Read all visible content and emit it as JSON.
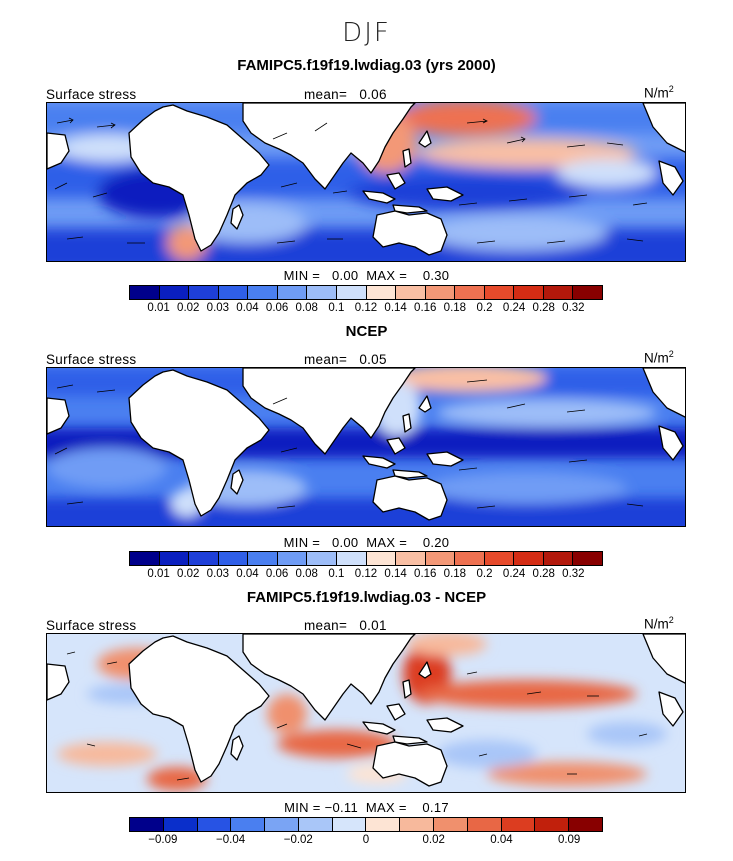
{
  "season": "DJF",
  "colors": {
    "abs": [
      "#00008b",
      "#0a1fbf",
      "#1e3fd8",
      "#2f5fe8",
      "#4a7ff0",
      "#6f9cf5",
      "#9dbdf8",
      "#cfe0fb",
      "#fde4d4",
      "#f9bfa4",
      "#f39877",
      "#ee7151",
      "#e64a2b",
      "#d42c14",
      "#b2180b",
      "#880000"
    ],
    "diff": [
      "#00008b",
      "#0a2fcb",
      "#2753e4",
      "#4a7ff0",
      "#7aa4f4",
      "#a9c6f8",
      "#d6e5fb",
      "#fde4d4",
      "#f7b99c",
      "#f0906d",
      "#e86745",
      "#dc3d20",
      "#c1200c",
      "#880000"
    ]
  },
  "panels": [
    {
      "title": "FAMIPC5.f19f19.lwdiag.03 (yrs 2000)",
      "left_label": "Surface stress",
      "mean_label": "mean=",
      "mean_value": "0.06",
      "units": "N/m",
      "units_sup": "2",
      "min_label": "MIN =",
      "min_value": "0.00",
      "max_label": "MAX =",
      "max_value": "0.30",
      "ticks": [
        "0.01",
        "0.02",
        "0.03",
        "0.04",
        "0.06",
        "0.08",
        "0.1",
        "0.12",
        "0.14",
        "0.16",
        "0.18",
        "0.2",
        "0.24",
        "0.28",
        "0.32"
      ]
    },
    {
      "title": "NCEP",
      "left_label": "Surface stress",
      "mean_label": "mean=",
      "mean_value": "0.05",
      "units": "N/m",
      "units_sup": "2",
      "min_label": "MIN =",
      "min_value": "0.00",
      "max_label": "MAX =",
      "max_value": "0.20",
      "ticks": [
        "0.01",
        "0.02",
        "0.03",
        "0.04",
        "0.06",
        "0.08",
        "0.1",
        "0.12",
        "0.14",
        "0.16",
        "0.18",
        "0.2",
        "0.24",
        "0.28",
        "0.32"
      ]
    },
    {
      "title": "FAMIPC5.f19f19.lwdiag.03 - NCEP",
      "left_label": "Surface stress",
      "mean_label": "mean=",
      "mean_value": "0.01",
      "units": "N/m",
      "units_sup": "2",
      "min_label": "MIN =",
      "min_value": "−0.11",
      "max_label": "MAX =",
      "max_value": "0.17",
      "ticks": [
        "−0.09",
        "−0.04",
        "−0.02",
        "0",
        "0.02",
        "0.04",
        "0.09"
      ]
    }
  ]
}
